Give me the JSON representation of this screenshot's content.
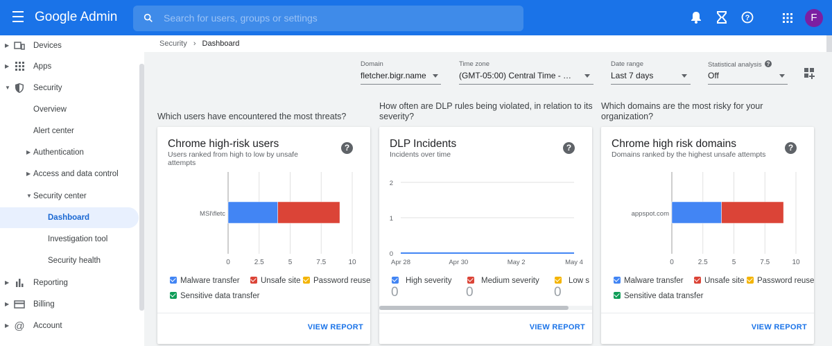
{
  "header": {
    "app_name": "Google Admin",
    "search_placeholder": "Search for users, groups or settings",
    "avatar_letter": "F"
  },
  "sidebar": {
    "items": [
      {
        "label": "Devices"
      },
      {
        "label": "Apps"
      },
      {
        "label": "Security"
      },
      {
        "label": "Overview"
      },
      {
        "label": "Alert center"
      },
      {
        "label": "Authentication"
      },
      {
        "label": "Access and data control"
      },
      {
        "label": "Security center"
      },
      {
        "label": "Dashboard"
      },
      {
        "label": "Investigation tool"
      },
      {
        "label": "Security health"
      },
      {
        "label": "Reporting"
      },
      {
        "label": "Billing"
      },
      {
        "label": "Account"
      }
    ]
  },
  "breadcrumb": {
    "parent": "Security",
    "current": "Dashboard"
  },
  "filters": {
    "domain": {
      "label": "Domain",
      "value": "fletcher.bigr.name"
    },
    "timezone": {
      "label": "Time zone",
      "value": "(GMT-05:00) Central Time - Me..."
    },
    "daterange": {
      "label": "Date range",
      "value": "Last 7 days"
    },
    "stats": {
      "label": "Statistical analysis",
      "value": "Off"
    }
  },
  "questions": {
    "q1": "Which users have encountered the most threats?",
    "q2": "How often are DLP rules being violated, in relation to its severity?",
    "q3": "Which domains are the most risky for your organization?"
  },
  "cards": {
    "users": {
      "title": "Chrome high-risk users",
      "subtitle": "Users ranked from high to low by unsafe attempts",
      "action": "VIEW REPORT"
    },
    "dlp": {
      "title": "DLP Incidents",
      "subtitle": "Incidents over time",
      "action": "VIEW REPORT"
    },
    "domains": {
      "title": "Chrome high risk domains",
      "subtitle": "Domains ranked by the highest unsafe attempts",
      "action": "VIEW REPORT"
    }
  },
  "legends": {
    "malware": "Malware transfer",
    "unsafe": "Unsafe site",
    "password": "Password reuse",
    "sensitive": "Sensitive data transfer",
    "high": "High severity",
    "medium": "Medium severity",
    "low": "Low s",
    "high_count": "0",
    "medium_count": "0",
    "low_count": "0"
  },
  "colors": {
    "blue": "#4285f4",
    "red": "#db4437",
    "yellow": "#f4b400",
    "green": "#0f9d58",
    "brand": "#1a73e8"
  },
  "chart_data": [
    {
      "type": "bar",
      "orientation": "horizontal",
      "stacked": true,
      "categories": [
        "MSI\\fletc"
      ],
      "series": [
        {
          "name": "Malware transfer",
          "values": [
            4
          ]
        },
        {
          "name": "Unsafe site",
          "values": [
            5
          ]
        },
        {
          "name": "Password reuse",
          "values": [
            0
          ]
        },
        {
          "name": "Sensitive data transfer",
          "values": [
            0
          ]
        }
      ],
      "xlim": [
        0,
        10
      ],
      "xticks": [
        "0",
        "2.5",
        "5",
        "7.5",
        "10"
      ]
    },
    {
      "type": "line",
      "x": [
        "Apr 28",
        "Apr 30",
        "May 2",
        "May 4"
      ],
      "series": [
        {
          "name": "High severity",
          "values": [
            0,
            0,
            0,
            0
          ]
        }
      ],
      "ylim": [
        0,
        2
      ],
      "yticks": [
        "0",
        "1",
        "2"
      ]
    },
    {
      "type": "bar",
      "orientation": "horizontal",
      "stacked": true,
      "categories": [
        "appspot.com"
      ],
      "series": [
        {
          "name": "Malware transfer",
          "values": [
            4
          ]
        },
        {
          "name": "Unsafe site",
          "values": [
            5
          ]
        },
        {
          "name": "Password reuse",
          "values": [
            0
          ]
        },
        {
          "name": "Sensitive data transfer",
          "values": [
            0
          ]
        }
      ],
      "xlim": [
        0,
        10
      ],
      "xticks": [
        "0",
        "2.5",
        "5",
        "7.5",
        "10"
      ]
    }
  ]
}
